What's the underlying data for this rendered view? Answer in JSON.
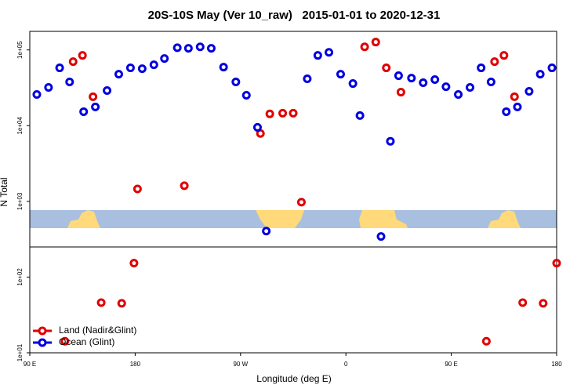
{
  "chart_data": {
    "type": "scatter",
    "title": "20S-10S May (Ver 10_raw)   2015-01-01 to 2020-12-31",
    "x_label": "Longitude (deg E)",
    "y_label": "N Total",
    "log_y": true,
    "legend": "bottom-left",
    "xlim": [
      90,
      540
    ],
    "xticks": [
      {
        "value": 90,
        "label": "90 E"
      },
      180,
      {
        "value": 270,
        "label": "90 W"
      },
      {
        "value": 360,
        "label": "0"
      },
      {
        "value": 450,
        "label": "90 E"
      },
      {
        "value": 540,
        "label": "180"
      }
    ],
    "ylim": [
      10,
      176000
    ],
    "yticks": [
      {
        "value": 10,
        "label": "1e+01"
      },
      {
        "value": 100,
        "label": "1e+02"
      },
      {
        "value": 1000,
        "label": "1e+03"
      },
      {
        "value": 10000,
        "label": "1e+04"
      },
      {
        "value": 100000,
        "label": "1e+05"
      }
    ],
    "series": [
      {
        "name": "Land (Nadir&Glint)",
        "color": "#e00000",
        "x": [
          127,
          135,
          144,
          182,
          222,
          287,
          295,
          306,
          315,
          322,
          376,
          385.5,
          394.5,
          407,
          487,
          495,
          504,
          120,
          151,
          168.5,
          179,
          480,
          511,
          528.5,
          540
        ],
        "values": [
          70000,
          84700,
          24100,
          1460,
          1610,
          7890,
          14300,
          14600,
          14600,
          977,
          110000,
          127000,
          58000,
          27700,
          70000,
          84700,
          24100,
          14.2,
          46,
          45,
          153,
          14.2,
          46,
          45,
          153
        ]
      },
      {
        "name": "Ocean (Glint)",
        "color": "#0000e0",
        "x": [
          96,
          106,
          115.5,
          124,
          136,
          146,
          156,
          166,
          176,
          186,
          196,
          205,
          216,
          225.5,
          235.5,
          245,
          255.5,
          266,
          275,
          284.5,
          292,
          327,
          336,
          345.5,
          355.5,
          366,
          372,
          390,
          398,
          405,
          416,
          426,
          436,
          445.5,
          456,
          466,
          475.5,
          484,
          497,
          506.5,
          516.5,
          526,
          536
        ],
        "values": [
          25800,
          32000,
          58000,
          37800,
          15300,
          17700,
          29100,
          47900,
          58000,
          56600,
          63700,
          77000,
          107000,
          105000,
          110000,
          105000,
          59300,
          37800,
          25200,
          9500,
          405,
          41600,
          84700,
          93100,
          47900,
          36000,
          13600,
          344,
          6220,
          45700,
          42500,
          36900,
          40600,
          32700,
          25800,
          32000,
          58000,
          37800,
          15300,
          17700,
          28400,
          47900,
          58000
        ]
      }
    ]
  }
}
